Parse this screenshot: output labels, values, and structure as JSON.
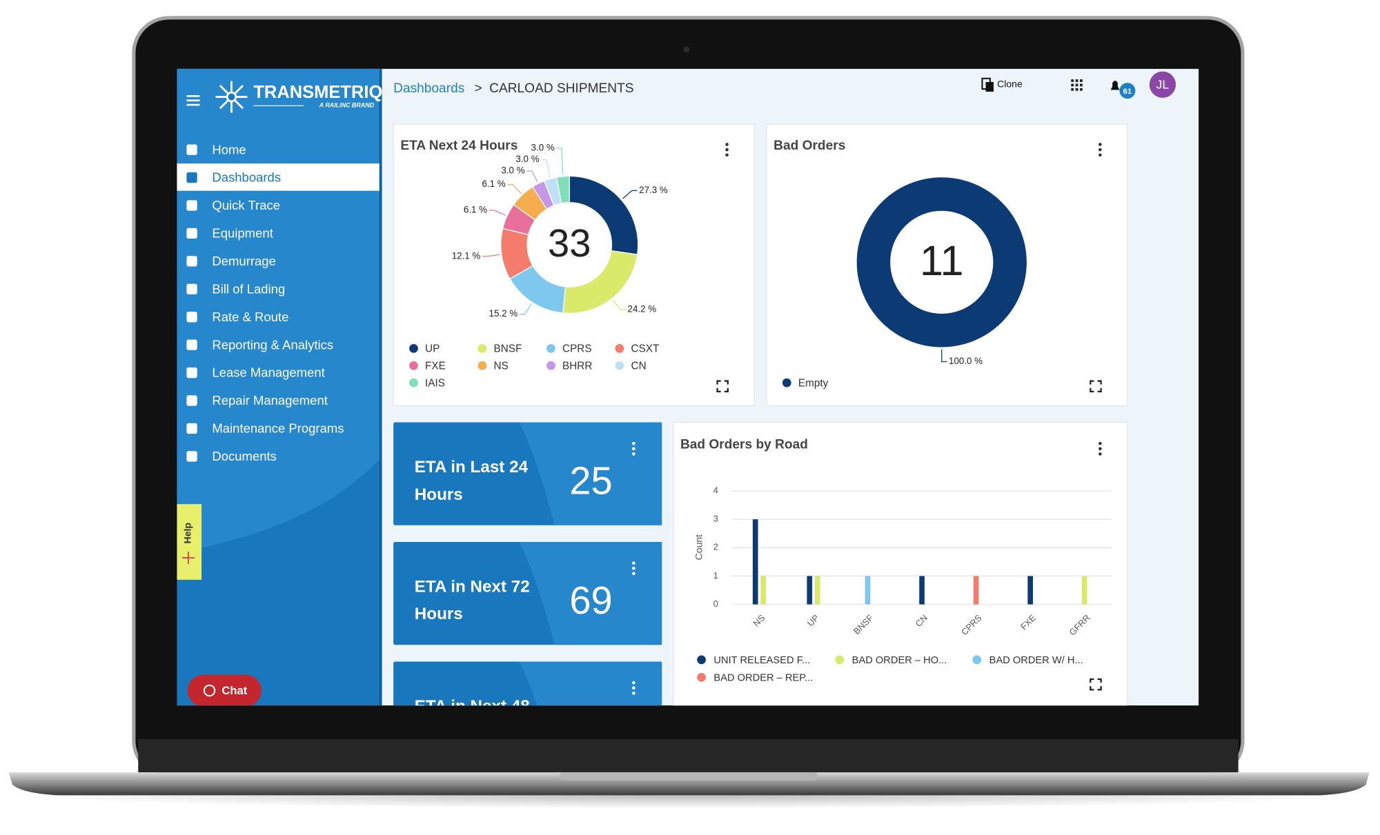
{
  "brand": {
    "name": "TRANSMETRIQ",
    "tagline": "A RAILINC BRAND"
  },
  "nav": {
    "items": [
      "Home",
      "Dashboards",
      "Quick Trace",
      "Equipment",
      "Demurrage",
      "Bill of Lading",
      "Rate & Route",
      "Reporting & Analytics",
      "Lease Management",
      "Repair Management",
      "Maintenance Programs",
      "Documents"
    ],
    "selected": 1
  },
  "breadcrumb": {
    "root": "Dashboards",
    "separator": ">",
    "current": "CARLOAD SHIPMENTS"
  },
  "toolbar": {
    "clone": "Clone",
    "notifications": 61,
    "avatar": "JL"
  },
  "help": "Help",
  "chat": "Chat",
  "eta_donut": {
    "type": "donut",
    "title": "ETA Next 24 Hours",
    "total": 33,
    "categories": [
      "UP",
      "BNSF",
      "CPRS",
      "CSXT",
      "FXE",
      "NS",
      "BHRR",
      "CN",
      "IAIS"
    ],
    "values": [
      27.3,
      24.2,
      15.2,
      12.1,
      6.1,
      6.1,
      3.0,
      3.0,
      3.0
    ],
    "value_labels": [
      "27.3 %",
      "24.2 %",
      "15.2 %",
      "12.1 %",
      "6.1 %",
      "6.1 %",
      "3.0 %",
      "3.0 %",
      "3.0 %"
    ],
    "colors": [
      "#0b3a75",
      "#d9ea6b",
      "#7ec8ef",
      "#f47c6c",
      "#e8709a",
      "#f6ad4e",
      "#c896e6",
      "#bfe0f5",
      "#7ee0b8"
    ]
  },
  "bad_orders_donut": {
    "type": "donut",
    "title": "Bad Orders",
    "total": 11,
    "categories": [
      "Empty"
    ],
    "values": [
      100.0
    ],
    "value_labels": [
      "100.0 %"
    ],
    "colors": [
      "#0b3a75"
    ]
  },
  "kpis": [
    {
      "title": "ETA in Last 24 Hours",
      "value": 25
    },
    {
      "title": "ETA in Next 72 Hours",
      "value": 69
    },
    {
      "title": "ETA in Next 48"
    }
  ],
  "bar_chart": {
    "type": "bar",
    "title": "Bad Orders by Road",
    "ylabel": "Count",
    "categories": [
      "NS",
      "UP",
      "BNSF",
      "CN",
      "CPRS",
      "FXE",
      "GFRR"
    ],
    "series": [
      {
        "name": "UNIT RELEASED F...",
        "color": "#0b3a75",
        "values": [
          3,
          1,
          null,
          1,
          null,
          1,
          null
        ]
      },
      {
        "name": "BAD ORDER – HO...",
        "color": "#d9ea6b",
        "values": [
          1,
          1,
          null,
          null,
          null,
          null,
          1
        ]
      },
      {
        "name": "BAD ORDER W/ H...",
        "color": "#7ec8ef",
        "values": [
          null,
          null,
          1,
          null,
          null,
          null,
          null
        ]
      },
      {
        "name": "BAD ORDER – REP...",
        "color": "#f47c6c",
        "values": [
          null,
          null,
          null,
          null,
          1,
          null,
          null
        ]
      }
    ],
    "ylim": [
      0,
      4
    ],
    "yticks": [
      0,
      1,
      2,
      3,
      4
    ],
    "grid": true
  }
}
